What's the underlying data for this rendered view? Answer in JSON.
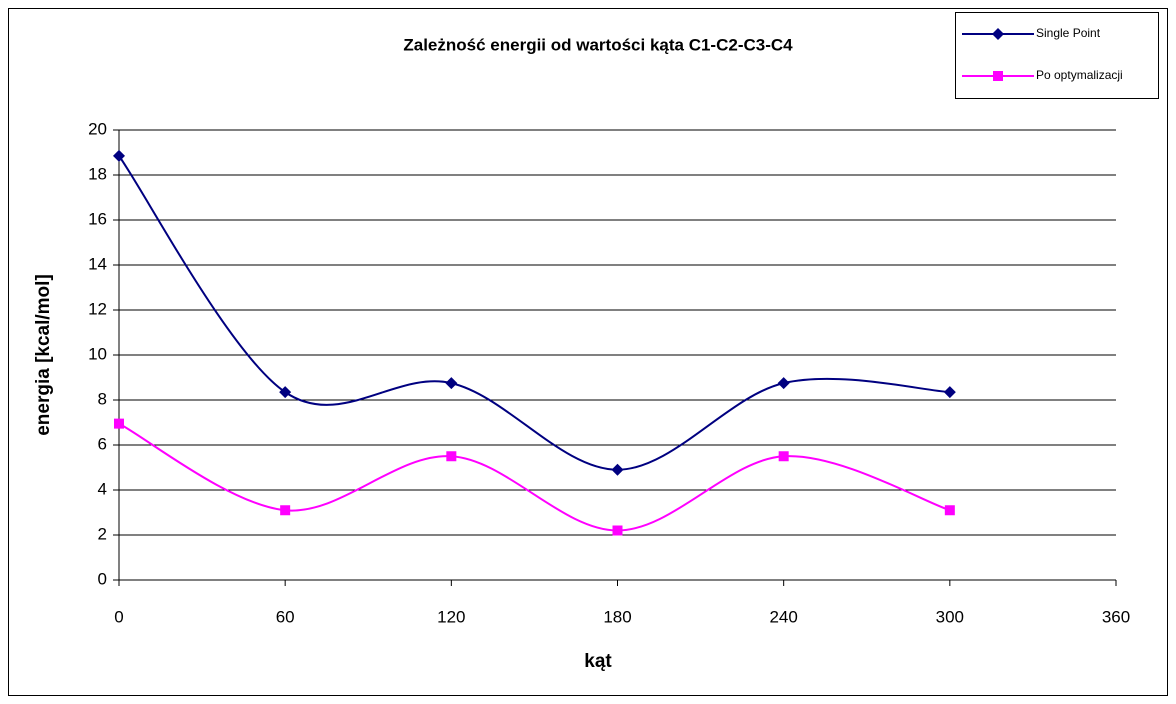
{
  "chart_data": {
    "type": "line",
    "title": "Zależność energii od wartości kąta C1-C2-C3-C4",
    "x_label": "kąt",
    "y_label": "energia [kcal/mol]",
    "x": [
      0,
      60,
      120,
      180,
      240,
      300
    ],
    "series": [
      {
        "name": "Single Point",
        "color": "#000080",
        "marker": "diamond",
        "values": [
          18.85,
          8.35,
          8.75,
          4.9,
          8.75,
          8.35
        ]
      },
      {
        "name": "Po optymalizacji",
        "color": "#ff00ff",
        "marker": "square",
        "values": [
          6.95,
          3.1,
          5.5,
          2.2,
          5.5,
          3.1
        ]
      }
    ],
    "xlim": [
      0,
      360
    ],
    "xticks": [
      0,
      60,
      120,
      180,
      240,
      300,
      360
    ],
    "ylim": [
      0,
      20
    ],
    "yticks": [
      0,
      2,
      4,
      6,
      8,
      10,
      12,
      14,
      16,
      18,
      20
    ],
    "grid": true,
    "smooth": true,
    "legend": "top-right"
  }
}
